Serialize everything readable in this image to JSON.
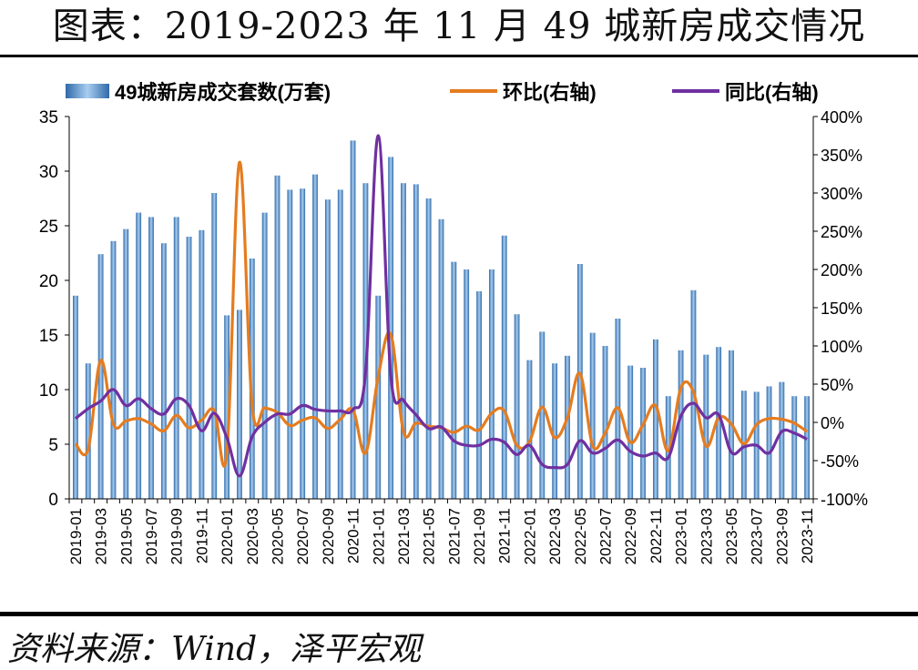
{
  "header": {
    "title": "图表：2019-2023 年 11 月 49 城新房成交情况"
  },
  "footer": {
    "source": "资料来源：Wind，泽平宏观"
  },
  "chart_data": {
    "type": "bar+line",
    "categories": [
      "2019-01",
      "2019-02",
      "2019-03",
      "2019-04",
      "2019-05",
      "2019-06",
      "2019-07",
      "2019-08",
      "2019-09",
      "2019-10",
      "2019-11",
      "2019-12",
      "2020-01",
      "2020-02",
      "2020-03",
      "2020-04",
      "2020-05",
      "2020-06",
      "2020-07",
      "2020-08",
      "2020-09",
      "2020-10",
      "2020-11",
      "2020-12",
      "2021-01",
      "2021-02",
      "2021-03",
      "2021-04",
      "2021-05",
      "2021-06",
      "2021-07",
      "2021-08",
      "2021-09",
      "2021-10",
      "2021-11",
      "2021-12",
      "2022-01",
      "2022-02",
      "2022-03",
      "2022-04",
      "2022-05",
      "2022-06",
      "2022-07",
      "2022-08",
      "2022-09",
      "2022-10",
      "2022-11",
      "2022-12",
      "2023-01",
      "2023-02",
      "2023-03",
      "2023-04",
      "2023-05",
      "2023-06",
      "2023-07",
      "2023-08",
      "2023-09",
      "2023-10",
      "2023-11"
    ],
    "tick_labels": [
      "2019-01",
      "2019-03",
      "2019-05",
      "2019-07",
      "2019-09",
      "2019-11",
      "2020-01",
      "2020-03",
      "2020-05",
      "2020-07",
      "2020-09",
      "2020-11",
      "2021-01",
      "2021-03",
      "2021-05",
      "2021-07",
      "2021-09",
      "2021-11",
      "2022-01",
      "2022-03",
      "2022-05",
      "2022-07",
      "2022-09",
      "2022-11",
      "2023-01",
      "2023-03",
      "2023-05",
      "2023-07",
      "2023-09",
      "2023-11"
    ],
    "series": [
      {
        "name": "49城新房成交套数(万套)",
        "type": "bar",
        "axis": "left",
        "color": "#4f8cc9",
        "values": [
          18.6,
          12.4,
          22.4,
          23.6,
          24.7,
          26.2,
          25.8,
          23.4,
          25.8,
          24.0,
          24.6,
          28.0,
          16.8,
          17.3,
          22.0,
          26.2,
          29.6,
          28.3,
          28.4,
          29.7,
          27.4,
          28.3,
          32.8,
          28.9,
          18.6,
          31.3,
          28.9,
          28.8,
          27.5,
          25.6,
          21.7,
          21.0,
          19.0,
          21.0,
          24.1,
          16.9,
          12.7,
          15.3,
          12.4,
          13.1,
          21.5,
          15.2,
          14.0,
          16.5,
          12.2,
          12.0,
          14.6,
          9.4,
          13.6,
          19.1,
          13.2,
          13.9,
          13.6,
          9.9,
          9.8,
          10.3,
          10.7,
          9.4,
          9.4
        ]
      },
      {
        "name": "环比(右轴)",
        "type": "line",
        "axis": "right",
        "color": "#e57c1f",
        "values": [
          -28,
          -35,
          81,
          -2,
          2,
          5,
          -2,
          -11,
          9,
          -7,
          3,
          16,
          -40,
          340,
          22,
          19,
          13,
          -4,
          3,
          6,
          -8,
          4,
          16,
          -40,
          60,
          115,
          -12,
          -1,
          -5,
          -7,
          -13,
          -5,
          -10,
          12,
          15,
          -30,
          -25,
          20,
          -20,
          6,
          64,
          -30,
          -14,
          19,
          -26,
          -3,
          22,
          -37,
          45,
          40,
          -31,
          6,
          -2,
          -28,
          -3,
          5,
          4,
          -1,
          -12
        ]
      },
      {
        "name": "同比(右轴)",
        "type": "line",
        "axis": "right",
        "color": "#7030a0",
        "values": [
          5,
          18,
          28,
          43,
          22,
          31,
          18,
          11,
          31,
          22,
          -11,
          12,
          -20,
          -70,
          -19,
          0,
          11,
          11,
          22,
          17,
          15,
          15,
          17,
          65,
          375,
          61,
          29,
          10,
          -8,
          -6,
          -24,
          -30,
          -30,
          -22,
          -26,
          -42,
          -30,
          -55,
          -59,
          -55,
          -24,
          -40,
          -34,
          -23,
          -38,
          -44,
          -40,
          -46,
          8,
          25,
          6,
          10,
          -39,
          -32,
          -30,
          -40,
          -12,
          -14,
          -22
        ]
      }
    ],
    "y_left": {
      "min": 0,
      "max": 35,
      "ticks": [
        0,
        5,
        10,
        15,
        20,
        25,
        30,
        35
      ]
    },
    "y_right": {
      "min": -100,
      "max": 400,
      "ticks": [
        -100,
        -50,
        0,
        50,
        100,
        150,
        200,
        250,
        300,
        350,
        400
      ],
      "format": "percent"
    },
    "legend": {
      "position": "top"
    }
  }
}
